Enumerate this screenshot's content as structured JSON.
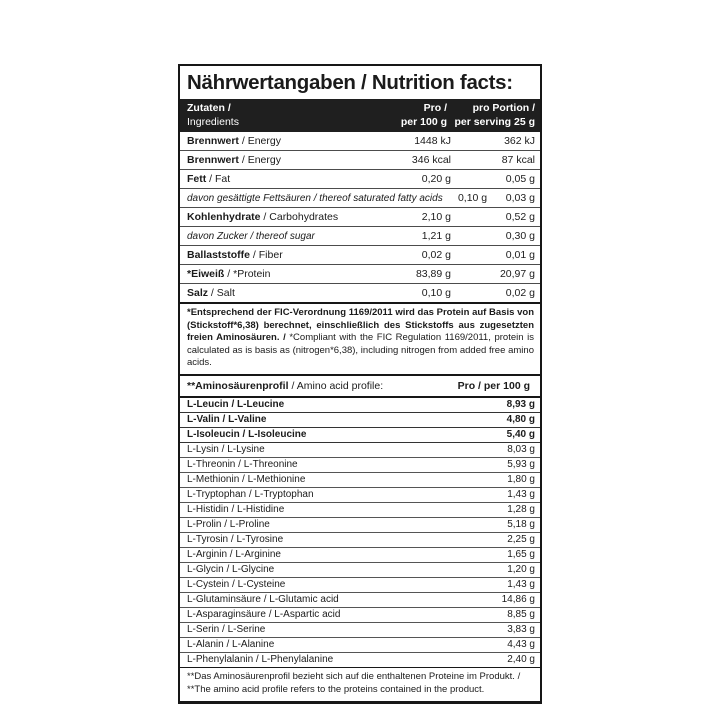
{
  "title": "Nährwertangaben / Nutrition facts:",
  "columns": {
    "ingredients_de": "Zutaten /",
    "ingredients_en": "Ingredients",
    "per100_l1": "Pro /",
    "per100_l2": "per 100 g",
    "serving_l1": "pro Portion /",
    "serving_l2": "per serving 25 g"
  },
  "nutrition_rows": [
    {
      "de": "Brennwert",
      "en": "Energy",
      "per100": "1448 kJ",
      "serving": "362 kJ",
      "style": "bold"
    },
    {
      "de": "Brennwert",
      "en": "Energy",
      "per100": "346 kcal",
      "serving": "87 kcal",
      "style": "bold"
    },
    {
      "de": "Fett",
      "en": "Fat",
      "per100": "0,20 g",
      "serving": "0,05 g",
      "style": "bold"
    },
    {
      "de": "davon gesättigte Fettsäuren",
      "en": "thereof saturated fatty acids",
      "per100": "0,10 g",
      "serving": "0,03 g",
      "style": "italic"
    },
    {
      "de": "Kohlenhydrate",
      "en": "Carbohydrates",
      "per100": "2,10 g",
      "serving": "0,52 g",
      "style": "bold"
    },
    {
      "de": "davon Zucker",
      "en": "thereof sugar",
      "per100": "1,21 g",
      "serving": "0,30 g",
      "style": "italic"
    },
    {
      "de": "Ballaststoffe",
      "en": "Fiber",
      "per100": "0,02 g",
      "serving": "0,01 g",
      "style": "bold"
    },
    {
      "de": "*Eiweiß",
      "en": "*Protein",
      "per100": "83,89 g",
      "serving": "20,97 g",
      "style": "bold"
    },
    {
      "de": "Salz",
      "en": "Salt",
      "per100": "0,10 g",
      "serving": "0,02 g",
      "style": "bold"
    }
  ],
  "protein_footnote": {
    "de": "*Entsprechend der FIC-Verordnung 1169/2011 wird das Protein auf Basis von (Stickstoff*6,38) berechnet, einschließlich des Stickstoffs aus zugesetzten freien Aminosäuren. /",
    "en": " *Compliant with the FIC Regulation 1169/2011, protein is calculated as is basis as (nitrogen*6,38), including nitrogen from added free amino acids."
  },
  "amino_header": {
    "label_de": "**Aminosäurenprofil",
    "label_en": "/ Amino acid profile:",
    "per100": "Pro / per 100 g"
  },
  "amino_rows": [
    {
      "label": "L-Leucin / L-Leucine",
      "value": "8,93 g",
      "bold": true
    },
    {
      "label": "L-Valin / L-Valine",
      "value": "4,80 g",
      "bold": true
    },
    {
      "label": "L-Isoleucin / L-Isoleucine",
      "value": "5,40 g",
      "bold": true
    },
    {
      "label": "L-Lysin / L-Lysine",
      "value": "8,03 g",
      "bold": false
    },
    {
      "label": "L-Threonin / L-Threonine",
      "value": "5,93 g",
      "bold": false
    },
    {
      "label": "L-Methionin / L-Methionine",
      "value": "1,80 g",
      "bold": false
    },
    {
      "label": "L-Tryptophan / L-Tryptophan",
      "value": "1,43 g",
      "bold": false
    },
    {
      "label": "L-Histidin / L-Histidine",
      "value": "1,28 g",
      "bold": false
    },
    {
      "label": "L-Prolin / L-Proline",
      "value": "5,18 g",
      "bold": false
    },
    {
      "label": "L-Tyrosin / L-Tyrosine",
      "value": "2,25 g",
      "bold": false
    },
    {
      "label": "L-Arginin / L-Arginine",
      "value": "1,65 g",
      "bold": false
    },
    {
      "label": "L-Glycin / L-Glycine",
      "value": "1,20 g",
      "bold": false
    },
    {
      "label": "L-Cystein / L-Cysteine",
      "value": "1,43 g",
      "bold": false
    },
    {
      "label": "L-Glutaminsäure / L-Glutamic acid",
      "value": "14,86 g",
      "bold": false
    },
    {
      "label": "L-Asparaginsäure / L-Aspartic acid",
      "value": "8,85 g",
      "bold": false
    },
    {
      "label": "L-Serin / L-Serine",
      "value": "3,83 g",
      "bold": false
    },
    {
      "label": "L-Alanin / L-Alanine",
      "value": "4,43 g",
      "bold": false
    },
    {
      "label": "L-Phenylalanin / L-Phenylalanine",
      "value": "2,40 g",
      "bold": false
    }
  ],
  "amino_footnote": {
    "de": "**Das Aminosäurenprofil bezieht sich auf die enthaltenen Proteine im Produkt. /",
    "en": "**The amino acid profile refers to the proteins contained in the product."
  },
  "colors": {
    "text": "#1b1b1b",
    "header_bg": "#1f1f1f",
    "header_text": "#ffffff",
    "border": "#171717"
  }
}
